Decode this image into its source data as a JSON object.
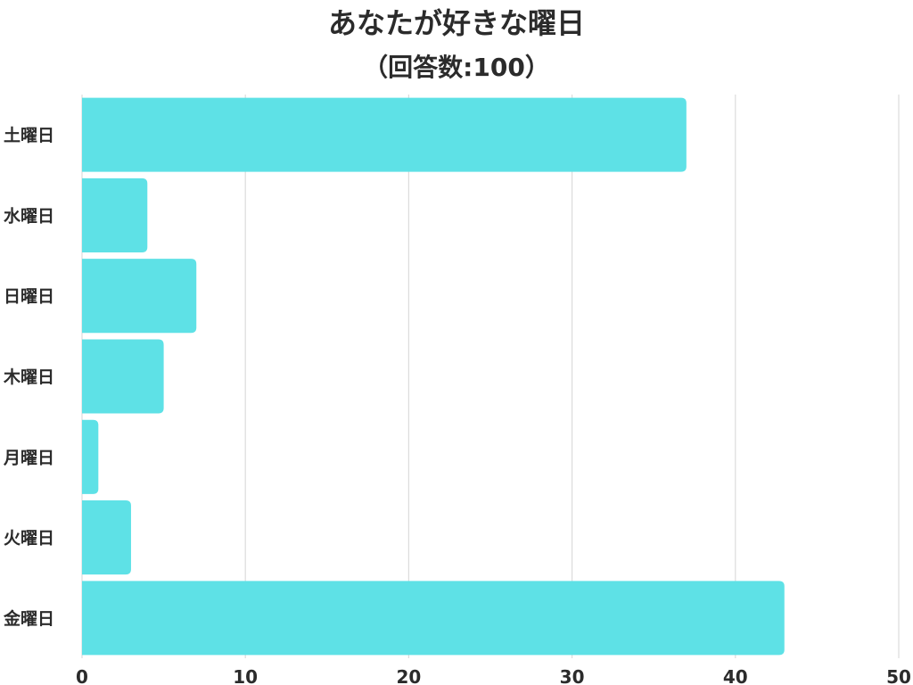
{
  "chart_data": {
    "type": "bar",
    "orientation": "horizontal",
    "title": "あなたが好きな曜日",
    "subtitle": "（回答数:100）",
    "categories": [
      "土曜日",
      "水曜日",
      "日曜日",
      "木曜日",
      "月曜日",
      "火曜日",
      "金曜日"
    ],
    "values": [
      37,
      4,
      7,
      5,
      1,
      3,
      43
    ],
    "xlim": [
      0,
      50
    ],
    "xticks": [
      0,
      10,
      20,
      30,
      40,
      50
    ],
    "grid": true,
    "legend": "none",
    "bar_color": "#5ee1e6",
    "grid_color": "#dcdcdc"
  }
}
